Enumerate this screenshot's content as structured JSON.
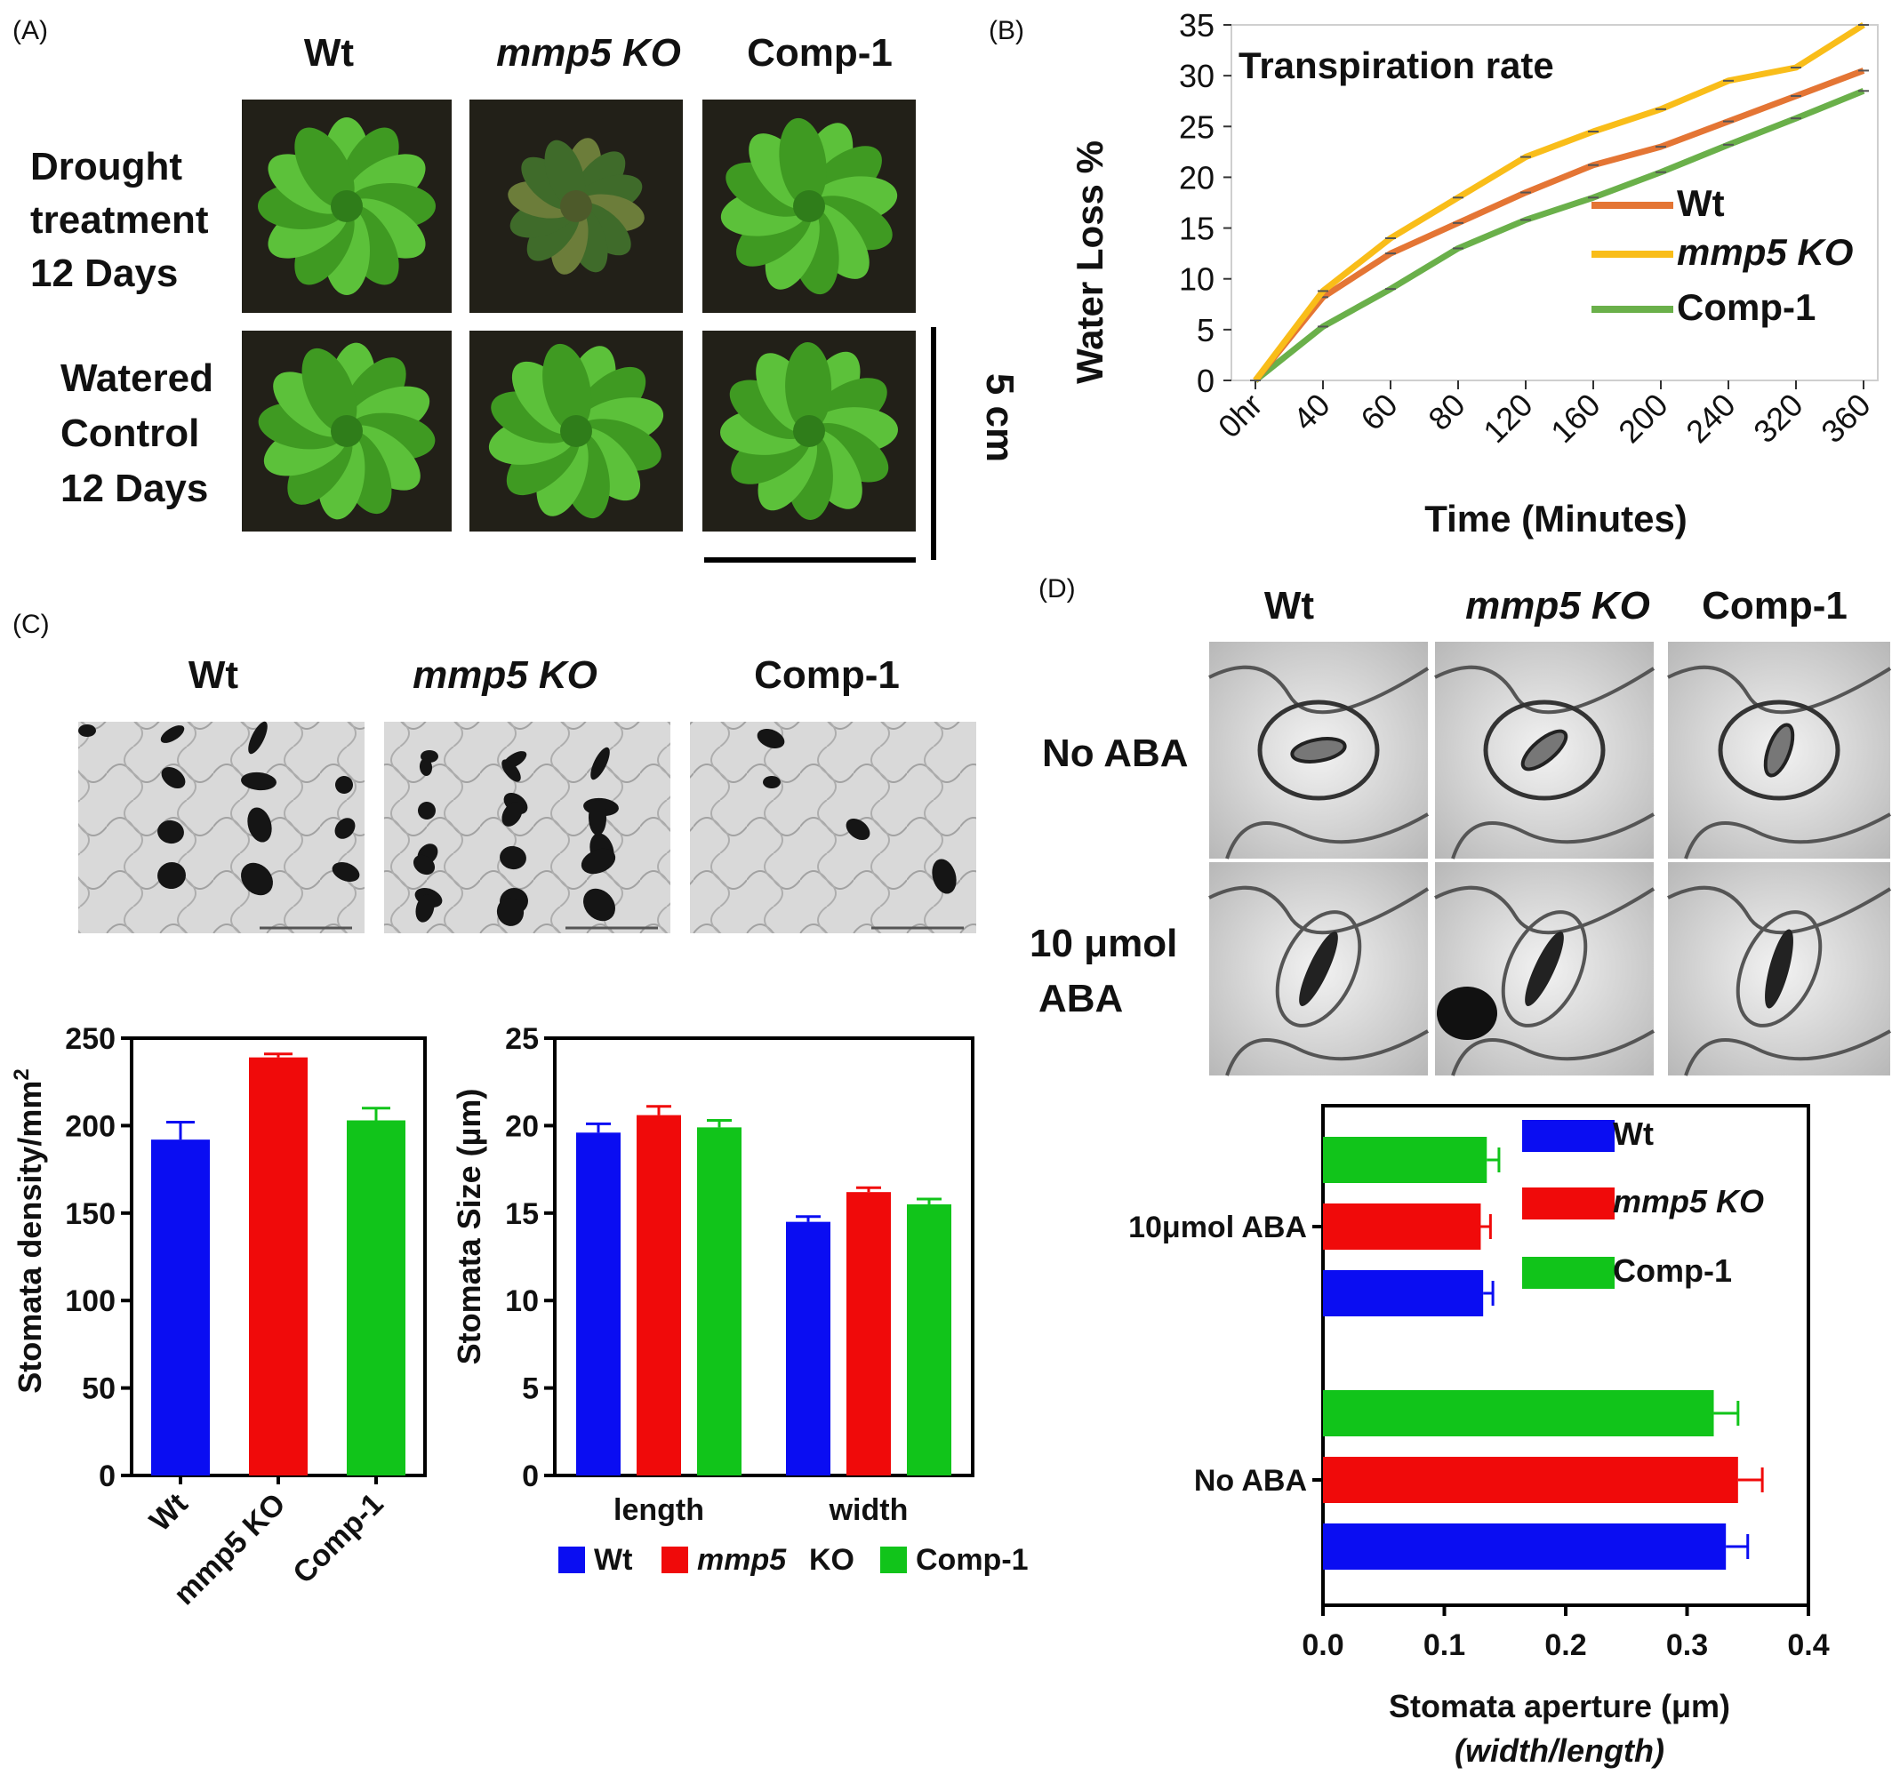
{
  "colors": {
    "wt": "#0a0df2",
    "mmp5": "#f00a0a",
    "comp": "#11c41a",
    "b_wt": "#e47534",
    "b_mmp5": "#f9bd19",
    "b_comp": "#6ab04a",
    "plant": "#3f9a22",
    "leaf_light": "#5cc13a",
    "photo_bg": "#222018",
    "micro_bg": "#d9d9d9"
  },
  "panels": {
    "a": "(A)",
    "b": "(B)",
    "c": "(C)",
    "d": "(D)"
  },
  "panel_a": {
    "col_headers": [
      "Wt",
      "mmp5 KO",
      "Comp-1"
    ],
    "row1": [
      "Drought",
      "treatment",
      "12 Days"
    ],
    "row2": [
      "Watered",
      "Control",
      "12 Days"
    ],
    "scale": "5 cm",
    "photo_icon": "plant-rosette-photo"
  },
  "panel_c_images": {
    "col_headers": [
      "Wt",
      "mmp5 KO",
      "Comp-1"
    ],
    "photo_icon": "epidermis-micrograph"
  },
  "panel_d_images": {
    "col_headers": [
      "Wt",
      "mmp5 KO",
      "Comp-1"
    ],
    "row1": "No ABA",
    "row2": [
      "10 μmol",
      "ABA"
    ],
    "photo_icon": "stomata-micrograph"
  },
  "chart_data": [
    {
      "id": "B",
      "type": "line",
      "title": "Transpiration rate",
      "xlabel": "Time (Minutes)",
      "ylabel": "Water Loss %",
      "ylim": [
        0,
        35
      ],
      "yticks": [
        0,
        5,
        10,
        15,
        20,
        25,
        30,
        35
      ],
      "categories": [
        "0hr",
        "40",
        "60",
        "80",
        "120",
        "160",
        "200",
        "240",
        "320",
        "360"
      ],
      "legend_position": "right",
      "series": [
        {
          "name": "Wt",
          "values": [
            0,
            8.2,
            12.5,
            15.5,
            18.5,
            21.2,
            23.0,
            25.5,
            28.0,
            30.5
          ]
        },
        {
          "name": "mmp5 KO",
          "values": [
            0,
            8.8,
            14.0,
            18.0,
            22.0,
            24.5,
            26.7,
            29.5,
            30.8,
            35.0
          ]
        },
        {
          "name": "Comp-1",
          "values": [
            0,
            5.3,
            9.0,
            13.0,
            15.8,
            18.0,
            20.5,
            23.2,
            25.8,
            28.5
          ]
        }
      ]
    },
    {
      "id": "C-density",
      "type": "bar",
      "ylabel": "Stomata density/mm",
      "ylabel_sup": "2",
      "ylim": [
        0,
        250
      ],
      "yticks": [
        0,
        50,
        100,
        150,
        200,
        250
      ],
      "categories": [
        "Wt",
        "mmp5 KO",
        "Comp-1"
      ],
      "values": [
        192,
        239,
        203
      ],
      "errors": [
        10,
        2,
        7
      ]
    },
    {
      "id": "C-size",
      "type": "bar",
      "ylabel": "Stomata Size (µm)",
      "ylim": [
        0,
        25
      ],
      "yticks": [
        0,
        5,
        10,
        15,
        20,
        25
      ],
      "categories": [
        "length",
        "width"
      ],
      "legend": [
        "Wt",
        "mmp5",
        "KO",
        "Comp-1"
      ],
      "series": [
        {
          "name": "Wt",
          "values": [
            19.6,
            14.5
          ],
          "errors": [
            0.5,
            0.3
          ]
        },
        {
          "name": "mmp5 KO",
          "values": [
            20.6,
            16.2
          ],
          "errors": [
            0.5,
            0.25
          ]
        },
        {
          "name": "Comp-1",
          "values": [
            19.9,
            15.5
          ],
          "errors": [
            0.4,
            0.3
          ]
        }
      ]
    },
    {
      "id": "D",
      "type": "bar",
      "orientation": "horizontal",
      "xlabel": "Stomata aperture (μm)",
      "xlabel_sub": "(width/length)",
      "xlim": [
        0,
        0.4
      ],
      "xticks": [
        "0.0",
        "0.1",
        "0.2",
        "0.3",
        "0.4"
      ],
      "categories": [
        "10μmol ABA",
        "No ABA"
      ],
      "legend_position": "top-right",
      "series": [
        {
          "name": "Wt",
          "values": [
            0.132,
            0.332
          ],
          "errors": [
            0.008,
            0.018
          ]
        },
        {
          "name": "mmp5 KO",
          "values": [
            0.13,
            0.342
          ],
          "errors": [
            0.008,
            0.02
          ]
        },
        {
          "name": "Comp-1",
          "values": [
            0.135,
            0.322
          ],
          "errors": [
            0.01,
            0.02
          ]
        }
      ]
    }
  ]
}
